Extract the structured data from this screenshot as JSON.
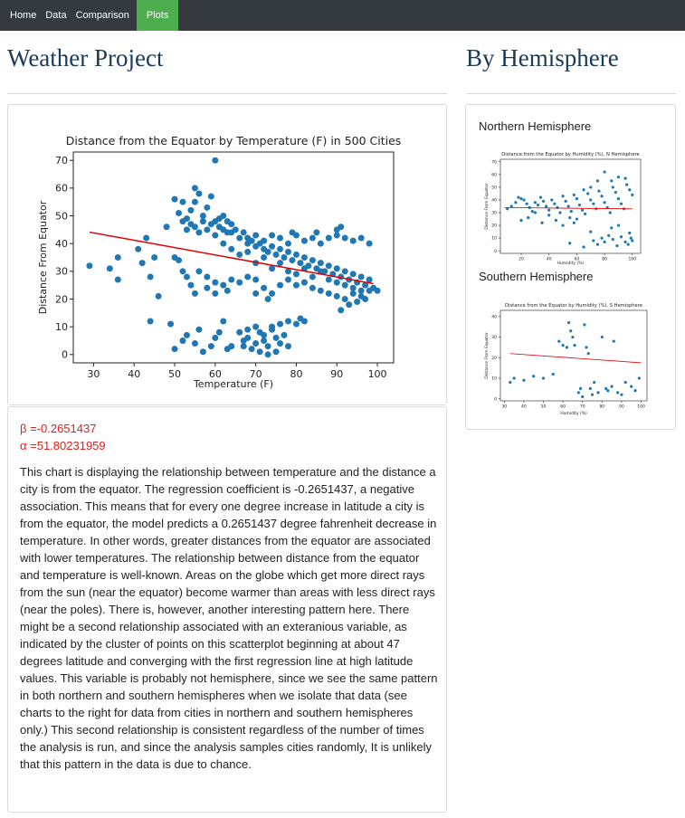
{
  "nav": {
    "items": [
      "Home",
      "Data",
      "Comparison",
      "Plots"
    ],
    "active": "Plots",
    "active_color": "#4cae4c"
  },
  "main": {
    "title": "Weather Project",
    "coefficients": {
      "beta": "β =-0.2651437",
      "alpha": "α =51.80231959"
    },
    "description": "This chart is displaying the relationship between temperature and the distance a city is from the equator. The regression coefficient is -0.2651437, a negative association. This means that for every one degree increase in latitude a city is from the equator, the model predicts a 0.2651437 degree fahrenheit decrease in temperature. In other words, greater distances from the equator are associated with lower temperatures. The relationship between distance from the equator and temperature is well-known. Areas on the globe which get more direct rays from the sun (near the equator) become warmer than areas with less direct rays (near the poles). There is, however, another interesting pattern here. There might be a second relationship associated with an exteranious variable, as indicated by the cluster of points on this scatterplot beginning at about 47 degrees latitude and converging with the first regression line at high latitude values. This variable is probably not hemisphere, since we see the same pattern in both northern and southern hemispheres when we isolate that data (see charts to the right for data from cities in northern and southern hemispheres only.) This second relationship is consistent regardless of the number of times the analysis is run, and since the analysis samples cities randomly, It is unlikely that this pattern in the data is due to chance."
  },
  "side": {
    "title": "By Hemisphere",
    "north_label": "Northern Hemisphere",
    "south_label": "Southern Hemisphere"
  },
  "chart_data": [
    {
      "type": "scatter",
      "title": "Distance from the Equator by Temperature (F) in 500 Cities",
      "xlabel": "Temperature (F)",
      "ylabel": "Distance From Equator",
      "xlim": [
        25,
        104
      ],
      "ylim": [
        -3,
        73
      ],
      "xticks": [
        30,
        40,
        50,
        60,
        70,
        80,
        90,
        100
      ],
      "yticks": [
        0,
        10,
        20,
        30,
        40,
        50,
        60,
        70
      ],
      "point_color": "#1f77b4",
      "line_color": "#e00000",
      "regression": {
        "slope": -0.2651437,
        "intercept": 51.80231959,
        "x_range": [
          29,
          99
        ]
      },
      "points": [
        [
          29,
          32
        ],
        [
          34,
          31
        ],
        [
          36,
          27
        ],
        [
          36,
          35
        ],
        [
          41,
          38
        ],
        [
          42,
          33
        ],
        [
          43,
          42
        ],
        [
          44,
          28
        ],
        [
          45,
          35
        ],
        [
          44,
          12
        ],
        [
          46,
          21
        ],
        [
          48,
          46
        ],
        [
          49,
          11
        ],
        [
          50,
          35
        ],
        [
          51,
          34
        ],
        [
          52,
          30
        ],
        [
          53,
          28
        ],
        [
          54,
          25
        ],
        [
          50,
          2
        ],
        [
          52,
          5
        ],
        [
          53,
          7
        ],
        [
          55,
          4
        ],
        [
          56,
          9
        ],
        [
          57,
          1
        ],
        [
          59,
          3
        ],
        [
          60,
          6
        ],
        [
          61,
          8
        ],
        [
          63,
          2
        ],
        [
          64,
          3
        ],
        [
          62,
          12
        ],
        [
          66,
          8
        ],
        [
          67,
          3
        ],
        [
          68,
          6
        ],
        [
          69,
          2
        ],
        [
          70,
          4
        ],
        [
          71,
          8
        ],
        [
          72,
          5
        ],
        [
          73,
          3
        ],
        [
          74,
          9
        ],
        [
          75,
          6
        ],
        [
          76,
          4
        ],
        [
          77,
          7
        ],
        [
          78,
          3
        ],
        [
          75,
          1
        ],
        [
          73,
          0
        ],
        [
          71,
          1
        ],
        [
          70,
          10
        ],
        [
          72,
          7
        ],
        [
          74,
          10
        ],
        [
          76,
          11
        ],
        [
          78,
          12
        ],
        [
          80,
          11
        ],
        [
          81,
          13
        ],
        [
          82,
          12
        ],
        [
          68,
          9
        ],
        [
          67,
          5
        ],
        [
          50,
          56
        ],
        [
          51,
          51
        ],
        [
          52,
          55
        ],
        [
          53,
          49
        ],
        [
          54,
          52
        ],
        [
          55,
          60
        ],
        [
          55,
          55
        ],
        [
          56,
          58
        ],
        [
          57,
          50
        ],
        [
          58,
          53
        ],
        [
          59,
          57
        ],
        [
          60,
          48
        ],
        [
          61,
          46
        ],
        [
          62,
          50
        ],
        [
          63,
          44
        ],
        [
          64,
          47
        ],
        [
          65,
          45
        ],
        [
          66,
          42
        ],
        [
          67,
          44
        ],
        [
          68,
          40
        ],
        [
          69,
          41
        ],
        [
          70,
          39
        ],
        [
          71,
          40
        ],
        [
          72,
          38
        ],
        [
          73,
          37
        ],
        [
          74,
          39
        ],
        [
          75,
          36
        ],
        [
          76,
          38
        ],
        [
          77,
          35
        ],
        [
          78,
          37
        ],
        [
          79,
          34
        ],
        [
          80,
          36
        ],
        [
          81,
          33
        ],
        [
          82,
          35
        ],
        [
          83,
          32
        ],
        [
          84,
          34
        ],
        [
          85,
          31
        ],
        [
          86,
          33
        ],
        [
          87,
          30
        ],
        [
          88,
          32
        ],
        [
          89,
          29
        ],
        [
          90,
          31
        ],
        [
          91,
          28
        ],
        [
          92,
          30
        ],
        [
          93,
          27
        ],
        [
          94,
          29
        ],
        [
          95,
          26
        ],
        [
          96,
          28
        ],
        [
          97,
          25
        ],
        [
          98,
          27
        ],
        [
          99,
          24
        ],
        [
          52,
          48
        ],
        [
          53,
          45
        ],
        [
          54,
          47
        ],
        [
          55,
          46
        ],
        [
          56,
          44
        ],
        [
          57,
          48
        ],
        [
          58,
          45
        ],
        [
          59,
          47
        ],
        [
          60,
          43
        ],
        [
          61,
          49
        ],
        [
          62,
          45
        ],
        [
          63,
          48
        ],
        [
          64,
          44
        ],
        [
          60,
          70
        ],
        [
          62,
          40
        ],
        [
          64,
          38
        ],
        [
          66,
          36
        ],
        [
          68,
          37
        ],
        [
          70,
          33
        ],
        [
          72,
          35
        ],
        [
          74,
          31
        ],
        [
          76,
          33
        ],
        [
          78,
          30
        ],
        [
          80,
          29
        ],
        [
          82,
          31
        ],
        [
          84,
          28
        ],
        [
          86,
          30
        ],
        [
          88,
          27
        ],
        [
          90,
          26
        ],
        [
          92,
          25
        ],
        [
          94,
          24
        ],
        [
          96,
          23
        ],
        [
          98,
          23
        ],
        [
          100,
          23
        ],
        [
          68,
          42
        ],
        [
          70,
          43
        ],
        [
          72,
          41
        ],
        [
          74,
          43
        ],
        [
          76,
          42
        ],
        [
          78,
          40
        ],
        [
          80,
          43
        ],
        [
          82,
          41
        ],
        [
          84,
          42
        ],
        [
          86,
          40
        ],
        [
          88,
          42
        ],
        [
          90,
          43
        ],
        [
          92,
          42
        ],
        [
          94,
          41
        ],
        [
          96,
          42
        ],
        [
          98,
          40
        ],
        [
          90,
          45
        ],
        [
          91,
          46
        ],
        [
          85,
          44
        ],
        [
          79,
          44
        ],
        [
          56,
          30
        ],
        [
          58,
          28
        ],
        [
          60,
          26
        ],
        [
          62,
          25
        ],
        [
          64,
          27
        ],
        [
          58,
          24
        ],
        [
          55,
          22
        ],
        [
          60,
          22
        ],
        [
          63,
          23
        ],
        [
          66,
          26
        ],
        [
          68,
          28
        ],
        [
          70,
          27
        ],
        [
          72,
          24
        ],
        [
          74,
          22
        ],
        [
          76,
          25
        ],
        [
          78,
          27
        ],
        [
          80,
          25
        ],
        [
          82,
          26
        ],
        [
          84,
          24
        ],
        [
          86,
          23
        ],
        [
          88,
          22
        ],
        [
          90,
          21
        ],
        [
          92,
          20
        ],
        [
          94,
          22
        ],
        [
          96,
          21
        ],
        [
          91,
          16
        ],
        [
          93,
          18
        ],
        [
          95,
          19
        ],
        [
          97,
          20
        ],
        [
          70,
          22
        ],
        [
          73,
          20
        ]
      ]
    },
    {
      "type": "scatter",
      "title": "Distance from the Equator by Humidity (%), N Hemisphere",
      "xlabel": "Humidity (%)",
      "ylabel": "Distance From Equator",
      "xlim": [
        5,
        106
      ],
      "ylim": [
        -2,
        72
      ],
      "xticks": [
        20,
        40,
        60,
        80,
        100
      ],
      "yticks": [
        0,
        10,
        20,
        30,
        40,
        50,
        60,
        70
      ],
      "regression": {
        "y_start": 34,
        "y_end": 33,
        "x_range": [
          8,
          100
        ]
      },
      "points": [
        [
          10,
          33
        ],
        [
          13,
          35
        ],
        [
          16,
          38
        ],
        [
          18,
          42
        ],
        [
          20,
          41
        ],
        [
          22,
          40
        ],
        [
          24,
          37
        ],
        [
          26,
          34
        ],
        [
          28,
          31
        ],
        [
          30,
          38
        ],
        [
          32,
          36
        ],
        [
          34,
          42
        ],
        [
          36,
          39
        ],
        [
          38,
          35
        ],
        [
          40,
          32
        ],
        [
          42,
          40
        ],
        [
          44,
          37
        ],
        [
          46,
          34
        ],
        [
          48,
          30
        ],
        [
          50,
          43
        ],
        [
          52,
          39
        ],
        [
          54,
          35
        ],
        [
          56,
          31
        ],
        [
          58,
          44
        ],
        [
          60,
          41
        ],
        [
          62,
          36
        ],
        [
          64,
          32
        ],
        [
          66,
          29
        ],
        [
          68,
          45
        ],
        [
          70,
          40
        ],
        [
          72,
          37
        ],
        [
          74,
          33
        ],
        [
          76,
          47
        ],
        [
          78,
          43
        ],
        [
          80,
          38
        ],
        [
          82,
          34
        ],
        [
          84,
          30
        ],
        [
          86,
          50
        ],
        [
          88,
          46
        ],
        [
          90,
          41
        ],
        [
          92,
          37
        ],
        [
          94,
          33
        ],
        [
          96,
          52
        ],
        [
          98,
          48
        ],
        [
          100,
          44
        ],
        [
          85,
          55
        ],
        [
          90,
          58
        ],
        [
          95,
          57
        ],
        [
          80,
          62
        ],
        [
          75,
          55
        ],
        [
          70,
          50
        ],
        [
          65,
          48
        ],
        [
          60,
          25
        ],
        [
          58,
          22
        ],
        [
          55,
          26
        ],
        [
          50,
          20
        ],
        [
          45,
          24
        ],
        [
          40,
          28
        ],
        [
          35,
          22
        ],
        [
          30,
          30
        ],
        [
          25,
          26
        ],
        [
          20,
          24
        ],
        [
          72,
          8
        ],
        [
          75,
          5
        ],
        [
          78,
          10
        ],
        [
          80,
          7
        ],
        [
          83,
          12
        ],
        [
          86,
          9
        ],
        [
          89,
          4
        ],
        [
          92,
          11
        ],
        [
          95,
          7
        ],
        [
          98,
          14
        ],
        [
          100,
          8
        ],
        [
          65,
          3
        ],
        [
          55,
          6
        ],
        [
          70,
          15
        ],
        [
          85,
          18
        ],
        [
          90,
          20
        ],
        [
          99,
          10
        ],
        [
          97,
          5
        ]
      ]
    },
    {
      "type": "scatter",
      "title": "Distance from the Equator by Humidity (%), S Hemisphere",
      "xlabel": "Humidity (%)",
      "ylabel": "Distance From Equator",
      "xlim": [
        28,
        103
      ],
      "ylim": [
        -1,
        43
      ],
      "xticks": [
        30,
        40,
        50,
        60,
        70,
        80,
        90,
        100
      ],
      "yticks": [
        0,
        10,
        20,
        30,
        40
      ],
      "regression": {
        "y_start": 22,
        "y_end": 17.5,
        "x_range": [
          33,
          100
        ]
      },
      "points": [
        [
          33,
          8
        ],
        [
          35,
          10
        ],
        [
          40,
          9
        ],
        [
          45,
          11
        ],
        [
          50,
          10
        ],
        [
          55,
          12
        ],
        [
          58,
          28
        ],
        [
          60,
          26
        ],
        [
          62,
          25
        ],
        [
          63,
          37
        ],
        [
          64,
          33
        ],
        [
          65,
          30
        ],
        [
          66,
          26
        ],
        [
          68,
          3
        ],
        [
          70,
          1
        ],
        [
          71,
          36
        ],
        [
          72,
          25
        ],
        [
          73,
          22
        ],
        [
          74,
          5
        ],
        [
          75,
          2
        ],
        [
          78,
          3
        ],
        [
          80,
          30
        ],
        [
          82,
          5
        ],
        [
          83,
          4
        ],
        [
          85,
          6
        ],
        [
          86,
          28
        ],
        [
          88,
          3
        ],
        [
          92,
          8
        ],
        [
          95,
          6
        ],
        [
          97,
          4
        ],
        [
          99,
          10
        ],
        [
          69,
          5
        ],
        [
          76,
          8
        ],
        [
          90,
          2
        ]
      ]
    }
  ]
}
